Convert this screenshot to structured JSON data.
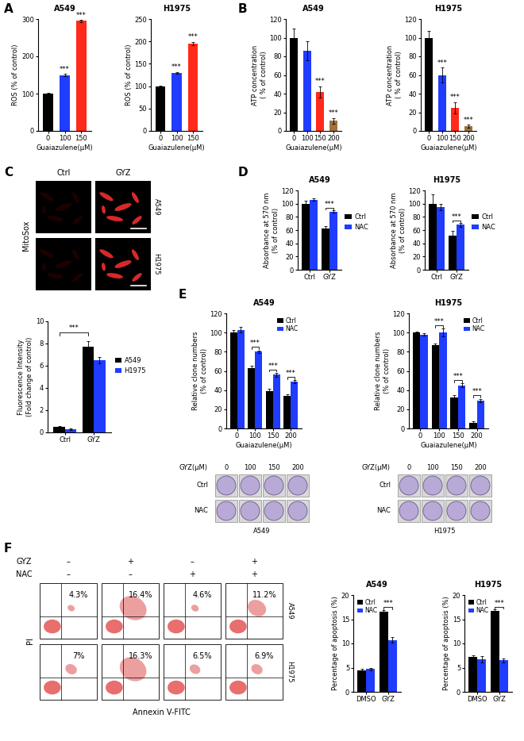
{
  "chart_data": [
    {
      "type": "bar",
      "title": "A549",
      "ylabel": "ROS (% of control)",
      "xlabel": "Guaiazulene(μM)",
      "categories": [
        "0",
        "100",
        "150"
      ],
      "values": [
        100,
        150,
        295
      ],
      "errors": [
        3,
        3,
        3
      ],
      "colors": [
        "#000000",
        "#1f3cff",
        "#ff2a1a"
      ],
      "ylim": [
        0,
        300
      ],
      "yticks": [
        0,
        100,
        200,
        300
      ],
      "significance": [
        {
          "category": "100",
          "text": "***"
        },
        {
          "category": "150",
          "text": "***"
        }
      ]
    },
    {
      "type": "bar",
      "title": "H1975",
      "ylabel": "ROS (% of control)",
      "xlabel": "Guaiazulene(μM)",
      "categories": [
        "0",
        "100",
        "150"
      ],
      "values": [
        100,
        130,
        195
      ],
      "errors": [
        1,
        2,
        4
      ],
      "colors": [
        "#000000",
        "#1f3cff",
        "#ff2a1a"
      ],
      "ylim": [
        0,
        250
      ],
      "yticks": [
        0,
        50,
        100,
        150,
        200,
        250
      ],
      "significance": [
        {
          "category": "100",
          "text": "***"
        },
        {
          "category": "150",
          "text": "***"
        }
      ]
    },
    {
      "type": "bar",
      "title": "A549",
      "ylabel": "ATP concentration\n( % of control)",
      "xlabel": "Guaiazulene(μM)",
      "categories": [
        "0",
        "100",
        "150",
        "200"
      ],
      "values": [
        100,
        86,
        42,
        11
      ],
      "errors": [
        10,
        10,
        6,
        3
      ],
      "colors": [
        "#000000",
        "#1f3cff",
        "#ff2a1a",
        "#a0733c"
      ],
      "ylim": [
        0,
        120
      ],
      "yticks": [
        0,
        20,
        40,
        60,
        80,
        100,
        120
      ],
      "significance": [
        {
          "category": "150",
          "text": "***"
        },
        {
          "category": "200",
          "text": "***"
        }
      ]
    },
    {
      "type": "bar",
      "title": "H1975",
      "ylabel": "ATP concentration\n( % of control)",
      "xlabel": "Guaiazulene(μM)",
      "categories": [
        "0",
        "100",
        "150",
        "200"
      ],
      "values": [
        100,
        60,
        25,
        5
      ],
      "errors": [
        7,
        8,
        6,
        1.5
      ],
      "colors": [
        "#000000",
        "#1f3cff",
        "#ff2a1a",
        "#a0733c"
      ],
      "ylim": [
        0,
        120
      ],
      "yticks": [
        0,
        20,
        40,
        60,
        80,
        100,
        120
      ],
      "significance": [
        {
          "category": "100",
          "text": "***"
        },
        {
          "category": "150",
          "text": "***"
        },
        {
          "category": "200",
          "text": "***"
        }
      ]
    },
    {
      "type": "bar",
      "ylabel": "Fluorescence Intensity\n(Fold change of control)",
      "categories": [
        "Ctrl",
        "GYZ"
      ],
      "series": [
        {
          "name": "A549",
          "color": "#000000",
          "values": [
            0.5,
            7.7
          ],
          "errors": [
            0.05,
            0.5
          ]
        },
        {
          "name": "H1975",
          "color": "#1f3cff",
          "values": [
            0.3,
            6.5
          ],
          "errors": [
            0.05,
            0.3
          ]
        }
      ],
      "ylim": [
        0,
        10
      ],
      "yticks": [
        0,
        2,
        4,
        6,
        8,
        10
      ],
      "legend": "right",
      "significance": [
        {
          "from": "Ctrl",
          "to": "GYZ",
          "text": "***"
        }
      ]
    },
    {
      "type": "bar",
      "title": "A549",
      "ylabel": "Absorbance at 570 nm\n(% of control)",
      "categories": [
        "Ctrl",
        "GYZ"
      ],
      "series": [
        {
          "name": "Ctrl",
          "color": "#000000",
          "values": [
            100,
            63
          ],
          "errors": [
            4,
            3
          ]
        },
        {
          "name": "NAC",
          "color": "#1f3cff",
          "values": [
            106,
            88
          ],
          "errors": [
            2,
            2
          ]
        }
      ],
      "ylim": [
        0,
        120
      ],
      "yticks": [
        0,
        20,
        40,
        60,
        80,
        100,
        120
      ],
      "legend": "right",
      "significance": [
        {
          "category": "GYZ",
          "text": "***"
        }
      ]
    },
    {
      "type": "bar",
      "title": "H1975",
      "ylabel": "Absorbance at 570 nm\n(% of control)",
      "categories": [
        "Ctrl",
        "GYZ"
      ],
      "series": [
        {
          "name": "Ctrl",
          "color": "#000000",
          "values": [
            100,
            52
          ],
          "errors": [
            14,
            7
          ]
        },
        {
          "name": "NAC",
          "color": "#1f3cff",
          "values": [
            95,
            68
          ],
          "errors": [
            5,
            3
          ]
        }
      ],
      "ylim": [
        0,
        120
      ],
      "yticks": [
        0,
        20,
        40,
        60,
        80,
        100,
        120
      ],
      "legend": "right",
      "significance": [
        {
          "category": "GYZ",
          "text": "***"
        }
      ]
    },
    {
      "type": "bar",
      "title": "A549",
      "ylabel": "Relative clone numbers\n(% of control)",
      "xlabel": "Guaiazulene(μM)",
      "categories": [
        "0",
        "100",
        "150",
        "200"
      ],
      "series": [
        {
          "name": "Ctrl",
          "color": "#000000",
          "values": [
            100,
            63,
            39,
            34
          ],
          "errors": [
            3,
            2,
            2,
            1.5
          ]
        },
        {
          "name": "NAC",
          "color": "#1f3cff",
          "values": [
            103,
            80,
            56,
            49
          ],
          "errors": [
            3,
            1.5,
            2,
            1.5
          ]
        }
      ],
      "ylim": [
        0,
        120
      ],
      "yticks": [
        0,
        20,
        40,
        60,
        80,
        100,
        120
      ],
      "legend": "upper right",
      "significance": [
        {
          "category": "100",
          "text": "***"
        },
        {
          "category": "150",
          "text": "***"
        },
        {
          "category": "200",
          "text": "***"
        }
      ]
    },
    {
      "type": "bar",
      "title": "H1975",
      "ylabel": "Relative clone numbers\n(% of control)",
      "xlabel": "Guaiazulene(μM)",
      "categories": [
        "0",
        "100",
        "150",
        "200"
      ],
      "series": [
        {
          "name": "Ctrl",
          "color": "#000000",
          "values": [
            100,
            87,
            32,
            6
          ],
          "errors": [
            1,
            1.5,
            3,
            1.5
          ]
        },
        {
          "name": "NAC",
          "color": "#1f3cff",
          "values": [
            98,
            100,
            45,
            29
          ],
          "errors": [
            1,
            4,
            2,
            2
          ]
        }
      ],
      "ylim": [
        0,
        120
      ],
      "yticks": [
        0,
        20,
        40,
        60,
        80,
        100,
        120
      ],
      "legend": "upper right",
      "significance": [
        {
          "category": "100",
          "text": "***"
        },
        {
          "category": "150",
          "text": "***"
        },
        {
          "category": "200",
          "text": "***"
        }
      ]
    },
    {
      "type": "bar",
      "title": "A549",
      "ylabel": "Percentage of apoptosis (%)",
      "categories": [
        "DMSO",
        "GYZ"
      ],
      "series": [
        {
          "name": "Ctrl",
          "color": "#000000",
          "values": [
            4.5,
            16.5
          ],
          "errors": [
            0.3,
            0.4
          ]
        },
        {
          "name": "NAC",
          "color": "#1f3cff",
          "values": [
            4.7,
            10.7
          ],
          "errors": [
            0.2,
            0.6
          ]
        }
      ],
      "ylim": [
        0,
        20
      ],
      "yticks": [
        0,
        5,
        10,
        15,
        20
      ],
      "legend": "upper left",
      "significance": [
        {
          "category": "GYZ",
          "text": "***"
        }
      ]
    },
    {
      "type": "bar",
      "title": "H1975",
      "ylabel": "Percentage of apoptosis (%)",
      "categories": [
        "DMSO",
        "GYZ"
      ],
      "series": [
        {
          "name": "Ctrl",
          "color": "#000000",
          "values": [
            7.2,
            16.7
          ],
          "errors": [
            0.3,
            0.3
          ]
        },
        {
          "name": "NAC",
          "color": "#1f3cff",
          "values": [
            6.7,
            6.5
          ],
          "errors": [
            0.6,
            0.4
          ]
        }
      ],
      "ylim": [
        0,
        20
      ],
      "yticks": [
        0,
        5,
        10,
        15,
        20
      ],
      "legend": "upper left",
      "significance": [
        {
          "category": "GYZ",
          "text": "***"
        }
      ]
    }
  ],
  "panel_labels": [
    "A",
    "B",
    "C",
    "D",
    "E",
    "F"
  ],
  "microscopy": {
    "stain": "MitoSox",
    "columns": [
      "Ctrl",
      "GYZ"
    ],
    "rows": [
      "A549",
      "H1975"
    ]
  },
  "colony_plates": {
    "header": "GYZ(μM)",
    "doses": [
      "0",
      "100",
      "150",
      "200"
    ],
    "rows": [
      "Ctrl",
      "NAC"
    ],
    "cell_lines": [
      "A549",
      "H1975"
    ]
  },
  "flow_cytometry": {
    "treatments": [
      {
        "name": "GYZ",
        "signs": [
          "–",
          "+",
          "–",
          "+"
        ]
      },
      {
        "name": "NAC",
        "signs": [
          "–",
          "–",
          "+",
          "+"
        ]
      }
    ],
    "rows": [
      {
        "name": "A549",
        "percent": [
          4.3,
          16.4,
          4.6,
          11.2
        ],
        "percent_labels": [
          "4.3%",
          "16.4%",
          "4.6%",
          "11.2%"
        ]
      },
      {
        "name": "H1975",
        "percent": [
          7,
          16.3,
          6.5,
          6.9
        ],
        "percent_labels": [
          "7%",
          "16.3%",
          "6.5%",
          "6.9%"
        ]
      }
    ],
    "ylabel": "PI",
    "xlabel": "Annexin V-FITC"
  }
}
